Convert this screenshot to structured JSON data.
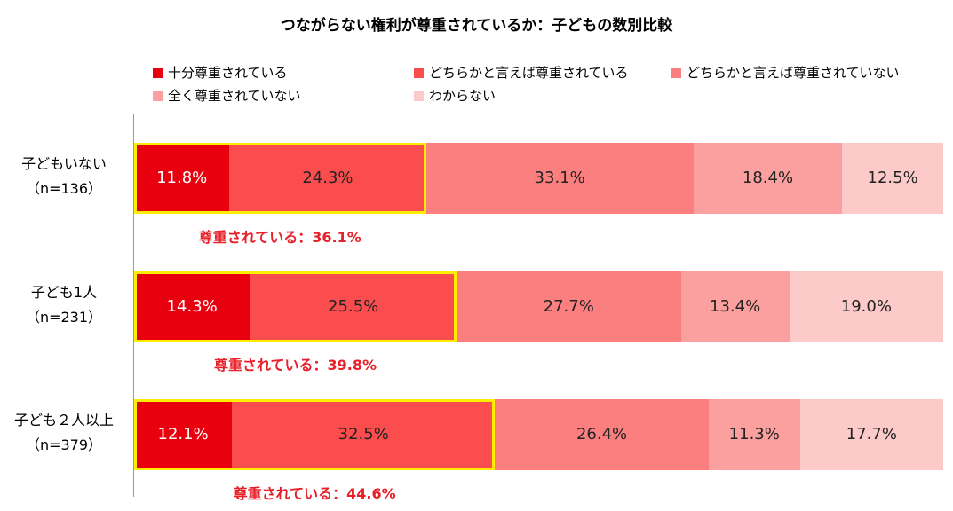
{
  "chart_data": {
    "type": "bar",
    "orientation": "horizontal",
    "stacked": true,
    "normalized": true,
    "title": "つながらない権利が尊重されているか：子どもの数別比較",
    "categories": [
      {
        "label": "子どもいない",
        "n": "（n=136）"
      },
      {
        "label": "子ども1人",
        "n": "（n=231）"
      },
      {
        "label": "子ども２人以上",
        "n": "（n=379）"
      }
    ],
    "series": [
      {
        "name": "十分尊重されている",
        "color": "#e8000f",
        "values": [
          11.8,
          14.3,
          12.1
        ]
      },
      {
        "name": "どちらかと言えば尊重されている",
        "color": "#fb4c4e",
        "values": [
          24.3,
          25.5,
          32.5
        ]
      },
      {
        "name": "どちらかと言えば尊重されていない",
        "color": "#fc7f80",
        "values": [
          33.1,
          27.7,
          26.4
        ]
      },
      {
        "name": "全く尊重されていない",
        "color": "#fc9f9f",
        "values": [
          18.4,
          13.4,
          11.3
        ]
      },
      {
        "name": "わからない",
        "color": "#fdcaca",
        "values": [
          12.5,
          19.0,
          17.7
        ]
      }
    ],
    "summaries": [
      "尊重されている：36.1%",
      "尊重されている：39.8%",
      "尊重されている：44.6%"
    ],
    "highlight_color": "#ffee00",
    "summary_color": "#e8202a",
    "value_format": "%",
    "legend_position": "top"
  }
}
